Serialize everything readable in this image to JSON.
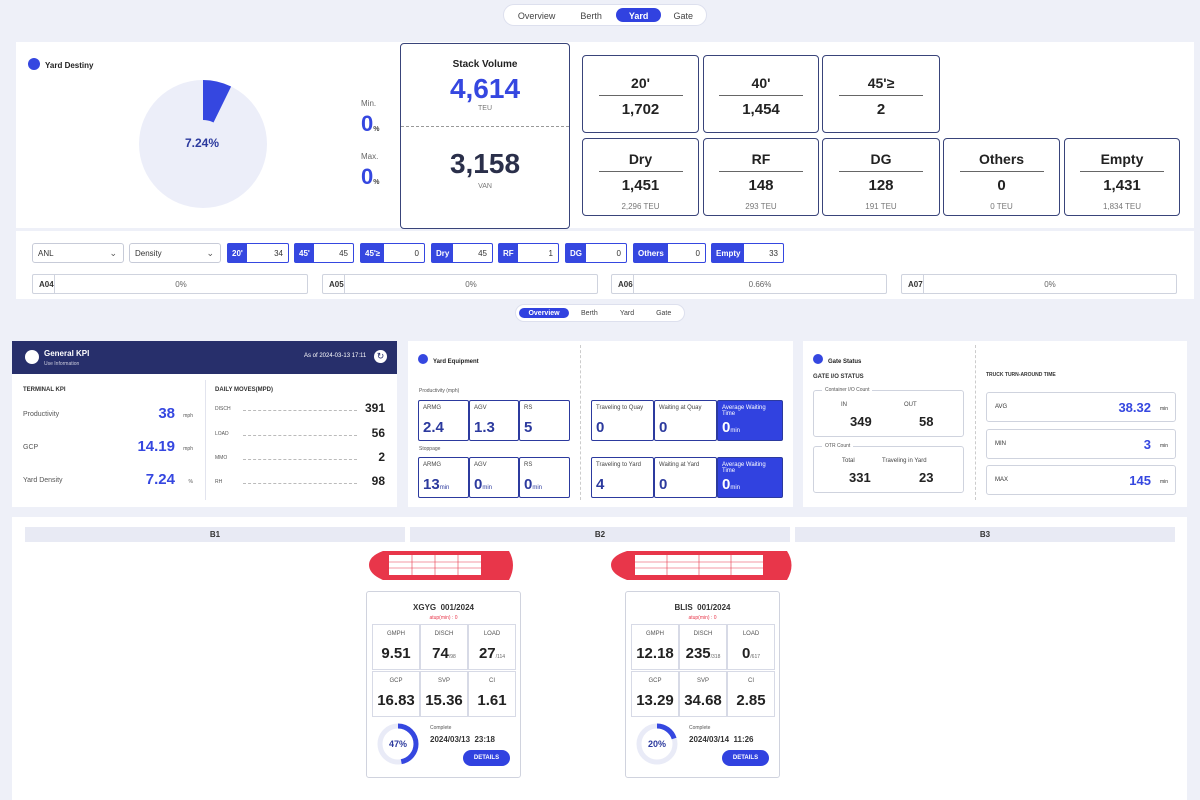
{
  "top_tabs": [
    "Overview",
    "Berth",
    "Yard",
    "Gate"
  ],
  "yard_destiny": {
    "title": "Yard Destiny",
    "pct": "7.24%",
    "pct_value": 7.24,
    "min_label": "Min.",
    "min_val": "0",
    "max_label": "Max.",
    "max_val": "0",
    "unit": "%"
  },
  "stack": {
    "title": "Stack Volume",
    "teu": "4,614",
    "teu_unit": "TEU",
    "van": "3,158",
    "van_unit": "VAN"
  },
  "sizes": [
    {
      "label": "20'",
      "value": "1,702"
    },
    {
      "label": "40'",
      "value": "1,454"
    },
    {
      "label": "45'≥",
      "value": "2"
    }
  ],
  "types": [
    {
      "label": "Dry",
      "value": "1,451",
      "sub": "2,296 TEU"
    },
    {
      "label": "RF",
      "value": "148",
      "sub": "293 TEU"
    },
    {
      "label": "DG",
      "value": "128",
      "sub": "191 TEU"
    },
    {
      "label": "Others",
      "value": "0",
      "sub": "0 TEU"
    },
    {
      "label": "Empty",
      "value": "1,431",
      "sub": "1,834 TEU"
    }
  ],
  "filters": {
    "sel1": "ANL",
    "sel2": "Density",
    "chips": [
      {
        "k": "20'",
        "v": "34"
      },
      {
        "k": "45'",
        "v": "45"
      },
      {
        "k": "45'≥",
        "v": "0"
      },
      {
        "k": "Dry",
        "v": "45"
      },
      {
        "k": "RF",
        "v": "1"
      },
      {
        "k": "DG",
        "v": "0"
      },
      {
        "k": "Others",
        "v": "0"
      },
      {
        "k": "Empty",
        "v": "33"
      }
    ]
  },
  "blocks": [
    {
      "k": "A04",
      "v": "0%"
    },
    {
      "k": "A05",
      "v": "0%"
    },
    {
      "k": "A06",
      "v": "0.66%"
    },
    {
      "k": "A07",
      "v": "0%"
    }
  ],
  "mid_tabs": [
    "Overview",
    "Berth",
    "Yard",
    "Gate"
  ],
  "kpi": {
    "title": "General KPI",
    "subtitle": "Use Information",
    "asof": "As of 2024-03-13 17:11",
    "terminal_title": "TERMINAL KPI",
    "daily_title": "DAILY MOVES(MPD)",
    "terminal": [
      {
        "l": "Productivity",
        "v": "38",
        "u": "mph"
      },
      {
        "l": "GCP",
        "v": "14.19",
        "u": "mph"
      },
      {
        "l": "Yard Density",
        "v": "7.24",
        "u": "%"
      }
    ],
    "daily": [
      {
        "l": "DISCH",
        "v": "391"
      },
      {
        "l": "LOAD",
        "v": "56"
      },
      {
        "l": "MMO",
        "v": "2"
      },
      {
        "l": "RH",
        "v": "98"
      }
    ]
  },
  "equip": {
    "title": "Yard Equipment",
    "prod_label": "Productivity (mph)",
    "stop_label": "Stoppage",
    "prod": [
      {
        "l": "ARMG",
        "v": "2.4"
      },
      {
        "l": "AGV",
        "v": "1.3"
      },
      {
        "l": "RS",
        "v": "5"
      }
    ],
    "stop": [
      {
        "l": "ARMG",
        "v": "13",
        "u": "min"
      },
      {
        "l": "AGV",
        "v": "0",
        "u": "min"
      },
      {
        "l": "RS",
        "v": "0",
        "u": "min"
      }
    ],
    "quay": [
      {
        "l": "Traveling to Quay",
        "v": "0"
      },
      {
        "l": "Waiting at Quay",
        "v": "0"
      },
      {
        "l": "Average Waiting Time",
        "v": "0",
        "u": "min"
      }
    ],
    "yard": [
      {
        "l": "Traveling to Yard",
        "v": "4"
      },
      {
        "l": "Waiting at Yard",
        "v": "0"
      },
      {
        "l": "Average Waiting Time",
        "v": "0",
        "u": "min"
      }
    ]
  },
  "gate": {
    "title": "Gate Status",
    "io_title": "GATE I/O STATUS",
    "cic": "Container I/O Count",
    "in_l": "IN",
    "in_v": "349",
    "out_l": "OUT",
    "out_v": "58",
    "otr": "OTR Count",
    "total_l": "Total",
    "total_v": "331",
    "tiy_l": "Traveling in Yard",
    "tiy_v": "23",
    "tat_title": "TRUCK TURN-AROUND TIME",
    "tat": [
      {
        "l": "AVG",
        "v": "38.32",
        "u": "min"
      },
      {
        "l": "MIN",
        "v": "3",
        "u": "min"
      },
      {
        "l": "MAX",
        "v": "145",
        "u": "min"
      }
    ]
  },
  "berths": [
    "B1",
    "B2",
    "B3"
  ],
  "vessels": [
    {
      "name": "XGYG  001/2024",
      "alert": "atup(min) : 0",
      "cells": [
        {
          "l": "GMPH",
          "v": "9.51",
          "s": ""
        },
        {
          "l": "DISCH",
          "v": "74",
          "s": "/98"
        },
        {
          "l": "LOAD",
          "v": "27",
          "s": "/114"
        },
        {
          "l": "GCP",
          "v": "16.83",
          "s": ""
        },
        {
          "l": "SVP",
          "v": "15.36",
          "s": ""
        },
        {
          "l": "CI",
          "v": "1.61",
          "s": ""
        }
      ],
      "pct": "47%",
      "pct_value": 47,
      "complete": "Complete",
      "date": "2024/03/13  23:18",
      "btn": "DETAILS"
    },
    {
      "name": "BLIS  001/2024",
      "alert": "atup(min) : 0",
      "cells": [
        {
          "l": "GMPH",
          "v": "12.18",
          "s": ""
        },
        {
          "l": "DISCH",
          "v": "235",
          "s": "/318"
        },
        {
          "l": "LOAD",
          "v": "0",
          "s": "/617"
        },
        {
          "l": "GCP",
          "v": "13.29",
          "s": ""
        },
        {
          "l": "SVP",
          "v": "34.68",
          "s": ""
        },
        {
          "l": "CI",
          "v": "2.85",
          "s": ""
        }
      ],
      "pct": "20%",
      "pct_value": 20,
      "complete": "Complete",
      "date": "2024/03/14  11:26",
      "btn": "DETAILS"
    }
  ],
  "colors": {
    "accent": "#3547e0",
    "ship": "#e8364a"
  }
}
